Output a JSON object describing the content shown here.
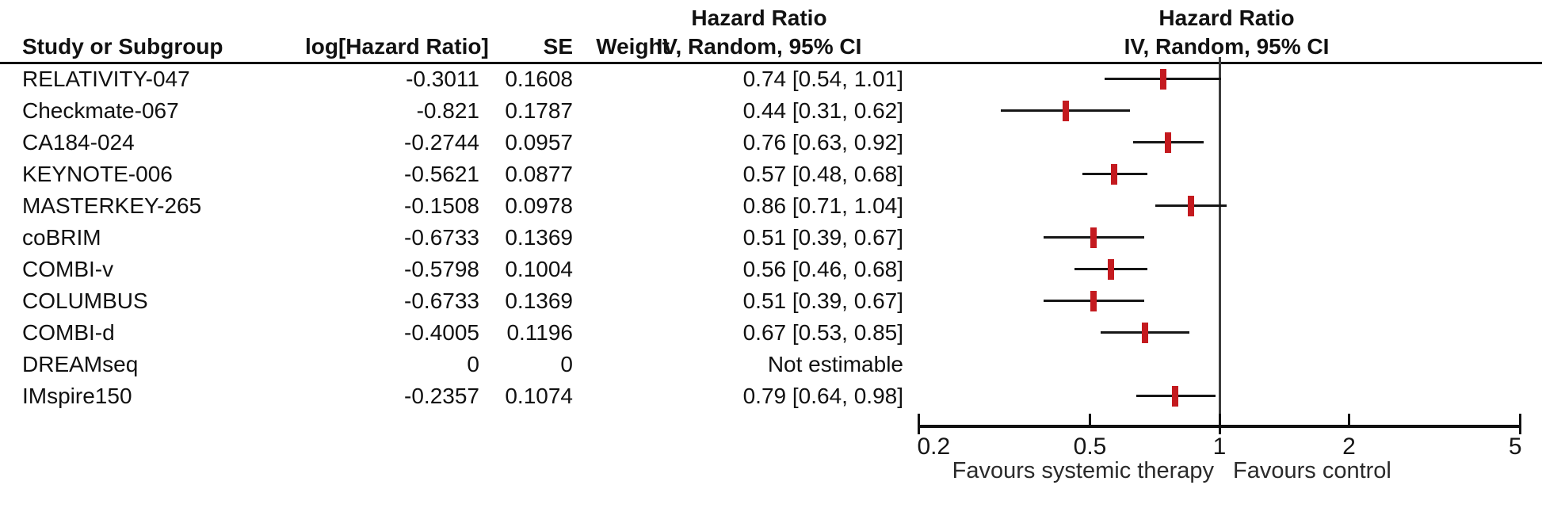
{
  "table": {
    "headers": {
      "study": "Study or Subgroup",
      "log_hr": "log[Hazard Ratio]",
      "se": "SE",
      "weight": "Weight",
      "ci_col_line1": "Hazard Ratio",
      "ci_col_line2": "IV, Random, 95% CI",
      "plot_col_line1": "Hazard Ratio",
      "plot_col_line2": "IV, Random, 95% CI"
    }
  },
  "chart_data": {
    "type": "forest",
    "effect_measure": "Hazard Ratio",
    "method": "IV, Random, 95% CI",
    "x_scale": "log",
    "xlim": [
      0.2,
      5
    ],
    "axis_ticks": [
      0.2,
      0.5,
      1,
      2,
      5
    ],
    "axis_tick_labels": [
      "0.2",
      "0.5",
      "1",
      "2",
      "5"
    ],
    "favours_left": "Favours systemic therapy",
    "favours_right": "Favours control",
    "marker_color": "#c41a1f",
    "not_estimable_text": "Not estimable",
    "studies": [
      {
        "study": "RELATIVITY-047",
        "log_hr": "-0.3011",
        "se": "0.1608",
        "weight": "",
        "ci_text": "0.74 [0.54, 1.01]",
        "hr": 0.74,
        "ci_low": 0.54,
        "ci_high": 1.01,
        "estimable": true
      },
      {
        "study": "Checkmate-067",
        "log_hr": "-0.821",
        "se": "0.1787",
        "weight": "",
        "ci_text": "0.44 [0.31, 0.62]",
        "hr": 0.44,
        "ci_low": 0.31,
        "ci_high": 0.62,
        "estimable": true
      },
      {
        "study": "CA184-024",
        "log_hr": "-0.2744",
        "se": "0.0957",
        "weight": "",
        "ci_text": "0.76 [0.63, 0.92]",
        "hr": 0.76,
        "ci_low": 0.63,
        "ci_high": 0.92,
        "estimable": true
      },
      {
        "study": "KEYNOTE-006",
        "log_hr": "-0.5621",
        "se": "0.0877",
        "weight": "",
        "ci_text": "0.57 [0.48, 0.68]",
        "hr": 0.57,
        "ci_low": 0.48,
        "ci_high": 0.68,
        "estimable": true
      },
      {
        "study": "MASTERKEY-265",
        "log_hr": "-0.1508",
        "se": "0.0978",
        "weight": "",
        "ci_text": "0.86 [0.71, 1.04]",
        "hr": 0.86,
        "ci_low": 0.71,
        "ci_high": 1.04,
        "estimable": true
      },
      {
        "study": "coBRIM",
        "log_hr": "-0.6733",
        "se": "0.1369",
        "weight": "",
        "ci_text": "0.51 [0.39, 0.67]",
        "hr": 0.51,
        "ci_low": 0.39,
        "ci_high": 0.67,
        "estimable": true
      },
      {
        "study": "COMBI-v",
        "log_hr": "-0.5798",
        "se": "0.1004",
        "weight": "",
        "ci_text": "0.56 [0.46, 0.68]",
        "hr": 0.56,
        "ci_low": 0.46,
        "ci_high": 0.68,
        "estimable": true
      },
      {
        "study": "COLUMBUS",
        "log_hr": "-0.6733",
        "se": "0.1369",
        "weight": "",
        "ci_text": "0.51 [0.39, 0.67]",
        "hr": 0.51,
        "ci_low": 0.39,
        "ci_high": 0.67,
        "estimable": true
      },
      {
        "study": "COMBI-d",
        "log_hr": "-0.4005",
        "se": "0.1196",
        "weight": "",
        "ci_text": "0.67 [0.53, 0.85]",
        "hr": 0.67,
        "ci_low": 0.53,
        "ci_high": 0.85,
        "estimable": true
      },
      {
        "study": "DREAMseq",
        "log_hr": "0",
        "se": "0",
        "weight": "",
        "ci_text": "Not estimable",
        "hr": null,
        "ci_low": null,
        "ci_high": null,
        "estimable": false
      },
      {
        "study": "IMspire150",
        "log_hr": "-0.2357",
        "se": "0.1074",
        "weight": "",
        "ci_text": "0.79 [0.64, 0.98]",
        "hr": 0.79,
        "ci_low": 0.64,
        "ci_high": 0.98,
        "estimable": true
      }
    ]
  }
}
